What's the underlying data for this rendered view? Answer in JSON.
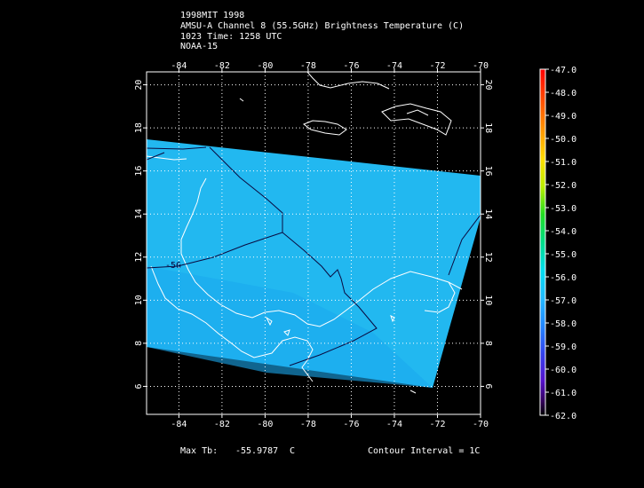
{
  "header": {
    "line1": "1998MIT 1998",
    "line2": "AMSU-A Channel 8 (55.5GHz) Brightness Temperature (C)",
    "line3": "1023 Time: 1258 UTC",
    "line4": "NOAA-15"
  },
  "map": {
    "lon_ticks": [
      "-84",
      "-82",
      "-80",
      "-78",
      "-76",
      "-74",
      "-72",
      "-70"
    ],
    "lat_ticks": [
      "6",
      "8",
      "10",
      "12",
      "14",
      "16",
      "18",
      "20"
    ],
    "lon_range": [
      -85.5,
      -70
    ],
    "lat_range": [
      4.7,
      20.6
    ],
    "contour_label": "-56",
    "swath_color": "#22b8f0",
    "coast_color": "#ffffff",
    "contour_color": "#000050",
    "grid_style": "dotted"
  },
  "colorbar": {
    "labels": [
      "-47.0",
      "-48.0",
      "-49.0",
      "-50.0",
      "-51.0",
      "-52.0",
      "-53.0",
      "-54.0",
      "-55.0",
      "-56.0",
      "-57.0",
      "-58.0",
      "-59.0",
      "-60.0",
      "-61.0",
      "-62.0"
    ]
  },
  "footer": {
    "max_label": "Max Tb:",
    "max_value": "-55.9787",
    "max_unit": "C",
    "contour": "Contour Interval = 1C"
  }
}
